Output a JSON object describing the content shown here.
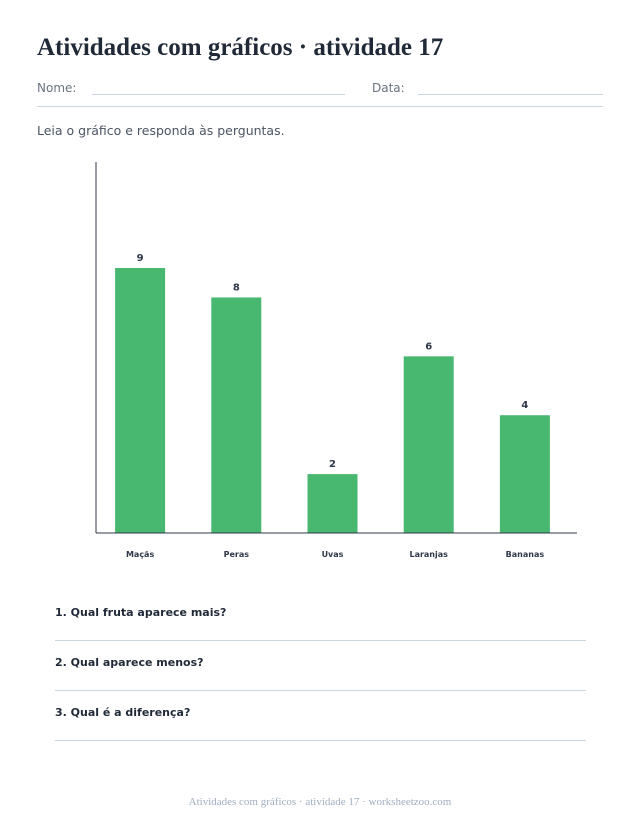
{
  "header": {
    "title": "Atividades com gráficos · atividade 17",
    "name_label": "Nome:",
    "date_label": "Data:"
  },
  "instruction": "Leia o gráfico e responda às perguntas.",
  "chart_data": {
    "type": "bar",
    "categories": [
      "Maçãs",
      "Peras",
      "Uvas",
      "Laranjas",
      "Bananas"
    ],
    "values": [
      9,
      8,
      2,
      6,
      4
    ],
    "title": "",
    "xlabel": "",
    "ylabel": "",
    "ylim": [
      0,
      12.6
    ],
    "grid": false,
    "bar_color": "#48b871"
  },
  "questions": [
    {
      "text": "1. Qual fruta aparece mais?"
    },
    {
      "text": "2. Qual aparece menos?"
    },
    {
      "text": "3. Qual é a diferença?"
    }
  ],
  "footer": "Atividades com gráficos · atividade 17 · worksheetzoo.com"
}
